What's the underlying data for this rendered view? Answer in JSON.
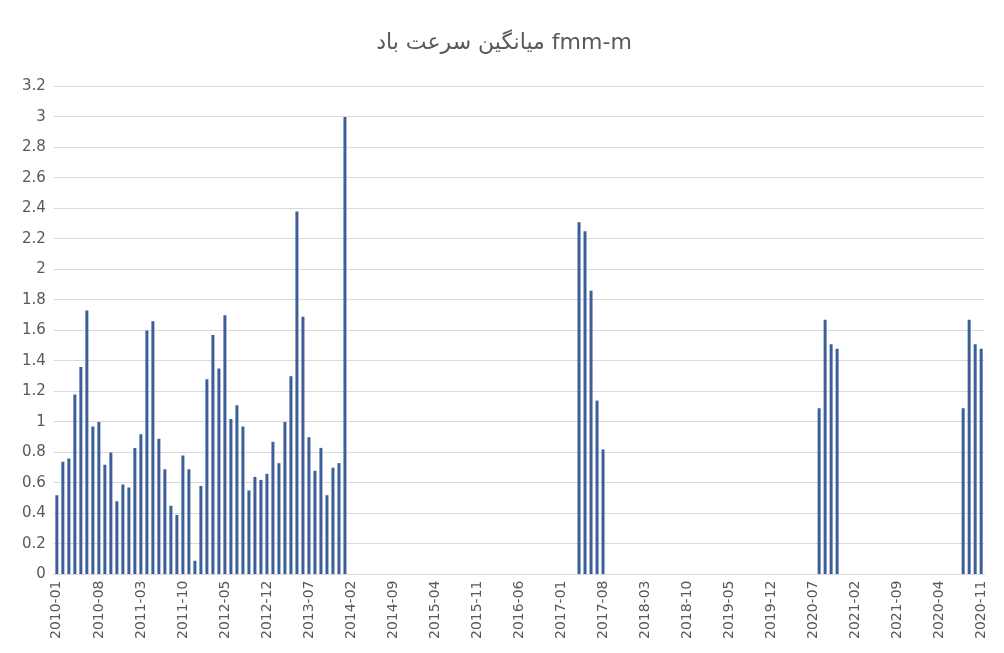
{
  "chart_data": {
    "type": "bar",
    "title": "میانگین سرعت باد fmm-m",
    "categories": [
      "2010-01",
      null,
      null,
      null,
      null,
      null,
      null,
      "2010-08",
      null,
      null,
      null,
      null,
      null,
      null,
      "2011-03",
      null,
      null,
      null,
      null,
      null,
      null,
      "2011-10",
      null,
      null,
      null,
      null,
      null,
      null,
      "2012-05",
      null,
      null,
      null,
      null,
      null,
      null,
      "2012-12",
      null,
      null,
      null,
      null,
      null,
      null,
      "2013-07",
      null,
      null,
      null,
      null,
      null,
      null,
      "2014-02",
      null,
      null,
      null,
      null,
      null,
      null,
      "2014-09",
      null,
      null,
      null,
      null,
      null,
      null,
      "2015-04",
      null,
      null,
      null,
      null,
      null,
      null,
      "2015-11",
      null,
      null,
      null,
      null,
      null,
      null,
      "2016-06",
      null,
      null,
      null,
      null,
      null,
      null,
      "2017-01",
      null,
      null,
      null,
      null,
      null,
      null,
      "2017-08",
      null,
      null,
      null,
      null,
      null,
      null,
      "2018-03",
      null,
      null,
      null,
      null,
      null,
      null,
      "2018-10",
      null,
      null,
      null,
      null,
      null,
      null,
      "2019-05",
      null,
      null,
      null,
      null,
      null,
      null,
      "2019-12",
      null,
      null,
      null,
      null,
      null,
      null,
      "2020-07",
      null,
      null,
      null,
      null,
      null,
      null,
      "2021-02",
      null,
      null,
      null,
      null,
      null,
      null,
      "2021-09",
      null,
      null,
      null,
      null,
      null,
      null,
      "2020-04",
      null,
      null,
      null,
      null,
      null,
      null,
      "2020-11"
    ],
    "values": [
      0.52,
      0.74,
      0.76,
      1.18,
      1.36,
      1.73,
      0.97,
      1.0,
      0.72,
      0.8,
      0.48,
      0.59,
      0.57,
      0.83,
      0.92,
      1.6,
      1.66,
      0.89,
      0.69,
      0.45,
      0.39,
      0.78,
      0.69,
      0.09,
      0.58,
      1.28,
      1.57,
      1.35,
      1.7,
      1.02,
      1.11,
      0.97,
      0.55,
      0.64,
      0.62,
      0.66,
      0.87,
      0.73,
      1.0,
      1.3,
      2.38,
      1.69,
      0.9,
      0.68,
      0.83,
      0.52,
      0.7,
      0.73,
      3.0,
      null,
      null,
      null,
      null,
      null,
      null,
      null,
      null,
      null,
      null,
      null,
      null,
      null,
      null,
      null,
      null,
      null,
      null,
      null,
      null,
      null,
      null,
      null,
      null,
      null,
      null,
      null,
      null,
      null,
      null,
      null,
      null,
      null,
      null,
      null,
      null,
      null,
      null,
      2.31,
      2.25,
      1.86,
      1.14,
      0.82,
      null,
      null,
      null,
      null,
      null,
      null,
      null,
      null,
      null,
      null,
      null,
      null,
      null,
      null,
      null,
      null,
      null,
      null,
      null,
      null,
      null,
      null,
      null,
      null,
      null,
      null,
      null,
      null,
      null,
      null,
      null,
      null,
      null,
      null,
      null,
      1.09,
      1.67,
      1.51,
      1.48,
      null,
      null,
      null,
      null,
      null,
      null,
      null,
      null,
      null,
      null,
      null,
      null,
      null,
      null,
      null,
      null,
      null,
      null,
      null,
      null,
      1.09,
      1.67,
      1.51,
      1.48
    ],
    "color": "#3d5f99",
    "ylim": [
      0,
      3.2
    ],
    "yticks": [
      0,
      0.2,
      0.4,
      0.6,
      0.8,
      1,
      1.2,
      1.4,
      1.6,
      1.8,
      2,
      2.2,
      2.4,
      2.6,
      2.8,
      3,
      3.2
    ],
    "grid": "y"
  }
}
